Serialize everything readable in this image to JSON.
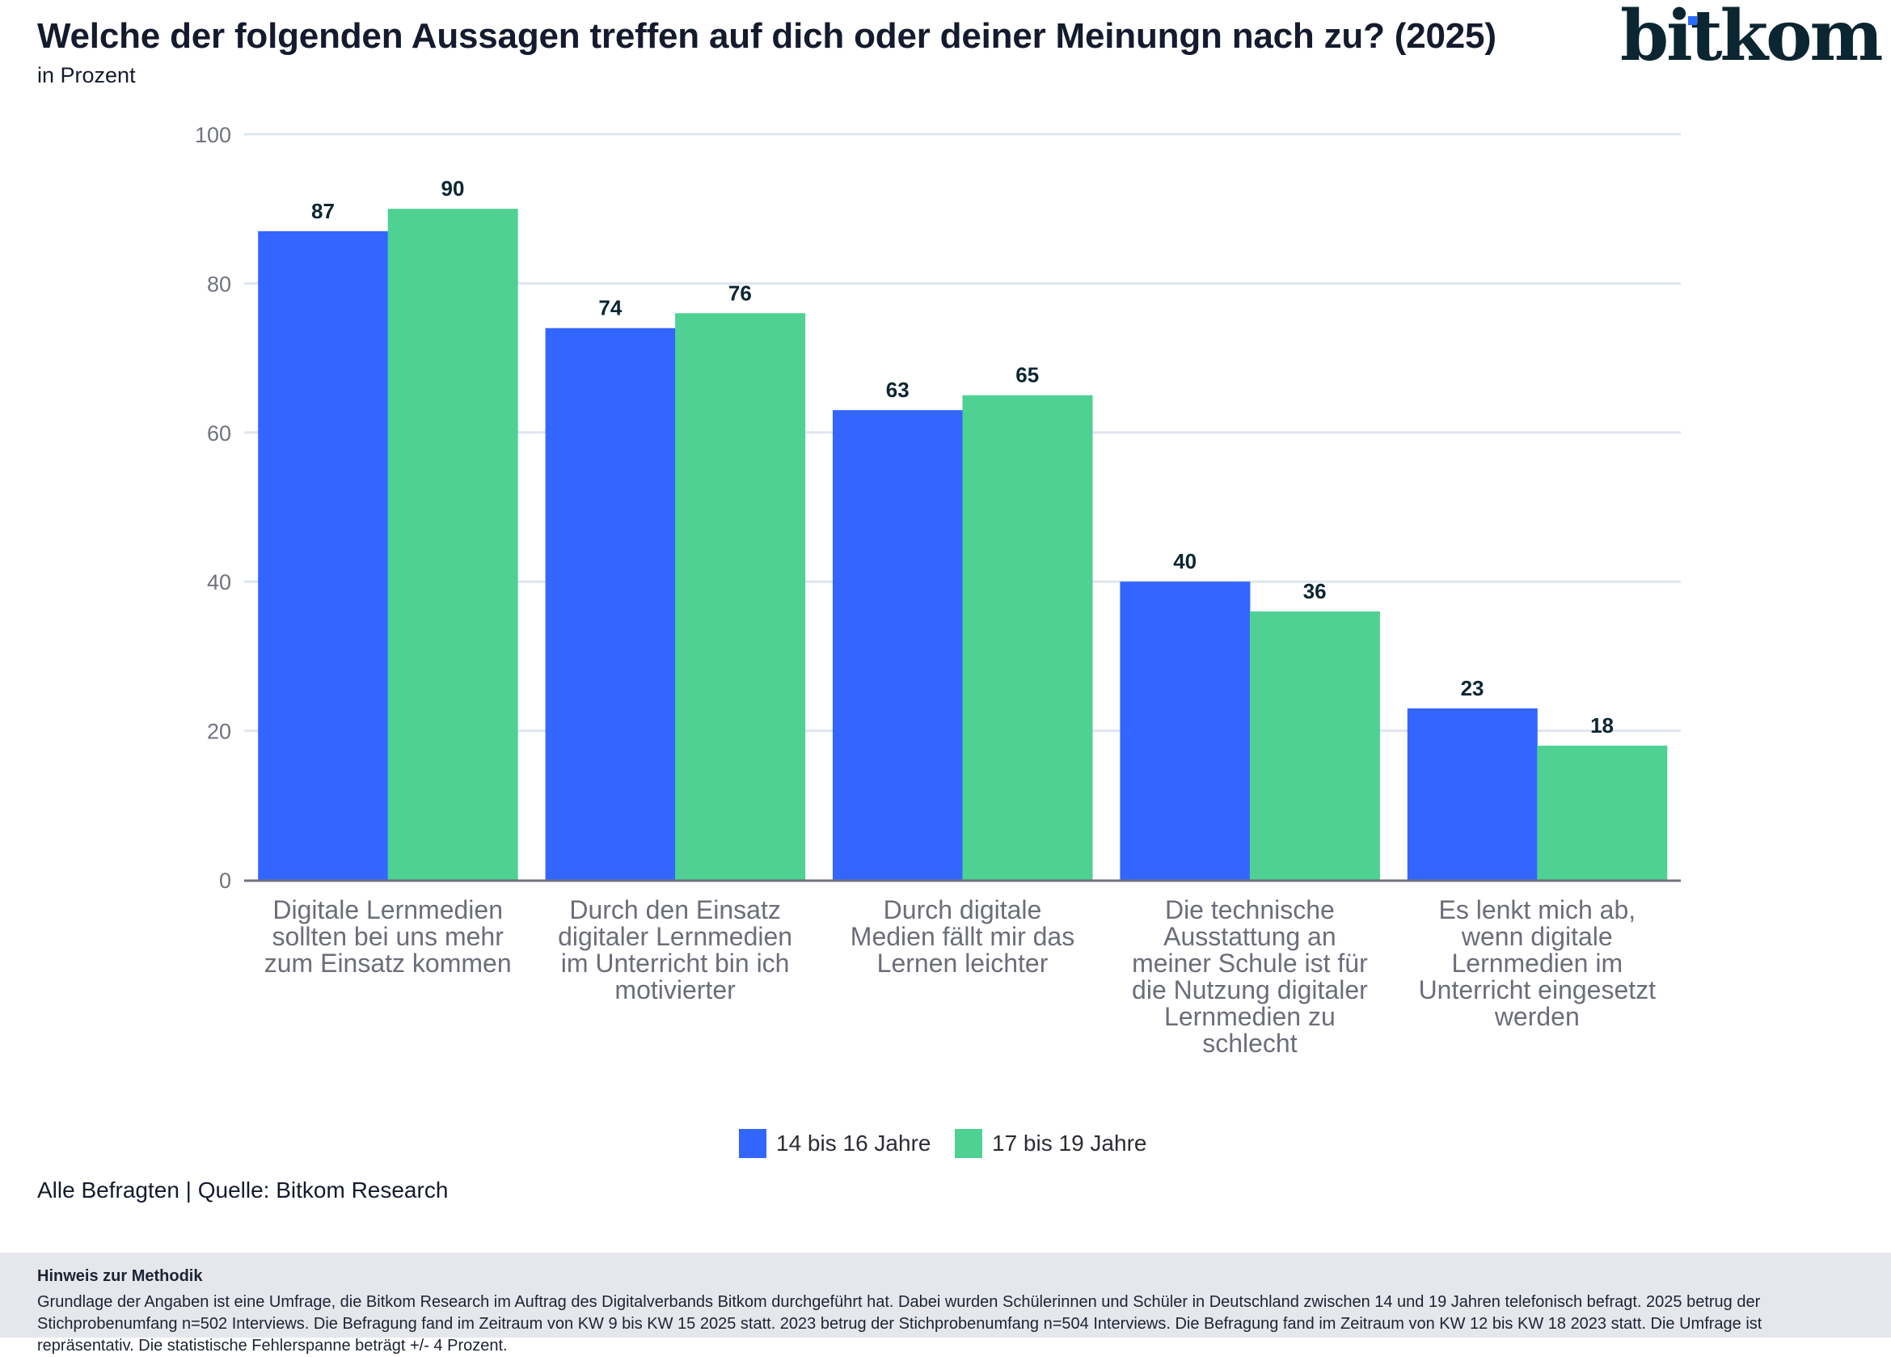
{
  "header": {
    "title": "Welche der folgenden Aussagen treffen auf dich oder deiner Meinungn nach zu? (2025)",
    "subtitle": "in Prozent",
    "logo_text": "bitkom",
    "logo_colors": {
      "text": "#0b2631",
      "dot": "#2a6bff"
    }
  },
  "chart_data": {
    "type": "bar",
    "title": "Welche der folgenden Aussagen treffen auf dich oder deiner Meinungn nach zu? (2025)",
    "subtitle": "in Prozent",
    "xlabel": "",
    "ylabel": "",
    "ylim": [
      0,
      100
    ],
    "yticks": [
      0,
      20,
      40,
      60,
      80,
      100
    ],
    "grid": true,
    "legend_position": "bottom-center",
    "categories": [
      [
        "Digitale Lernmedien",
        "sollten bei uns mehr",
        "zum Einsatz kommen"
      ],
      [
        "Durch den Einsatz",
        "digitaler Lernmedien",
        "im Unterricht bin ich",
        "motivierter"
      ],
      [
        "Durch digitale",
        "Medien fällt mir das",
        "Lernen leichter"
      ],
      [
        "Die technische",
        "Ausstattung an",
        "meiner Schule ist für",
        "die Nutzung digitaler",
        "Lernmedien zu",
        "schlecht"
      ],
      [
        "Es lenkt mich ab,",
        "wenn digitale",
        "Lernmedien im",
        "Unterricht eingesetzt",
        "werden"
      ]
    ],
    "series": [
      {
        "name": "14 bis 16 Jahre",
        "color": "#3366ff",
        "values": [
          87,
          74,
          63,
          40,
          23
        ]
      },
      {
        "name": "17 bis 19 Jahre",
        "color": "#4ed193",
        "values": [
          90,
          76,
          65,
          36,
          18
        ]
      }
    ]
  },
  "footer": {
    "source": "Alle Befragten | Quelle: Bitkom Research",
    "method_title": "Hinweis zur Methodik",
    "method_text": "Grundlage der Angaben ist eine Umfrage, die Bitkom Research im Auftrag des Digitalverbands Bitkom durchgeführt hat. Dabei wurden Schülerinnen und Schüler in Deutschland zwischen 14 und 19 Jahren telefonisch befragt. 2025 betrug der Stichprobenumfang n=502 Interviews. Die Befragung fand im Zeitraum von KW 9 bis KW 15 2025 statt. 2023 betrug der Stichprobenumfang n=504 Interviews. Die Befragung fand im Zeitraum von KW 12 bis KW 18 2023 statt. Die Umfrage ist repräsentativ. Die statistische Fehlerspanne beträgt +/- 4 Prozent."
  }
}
